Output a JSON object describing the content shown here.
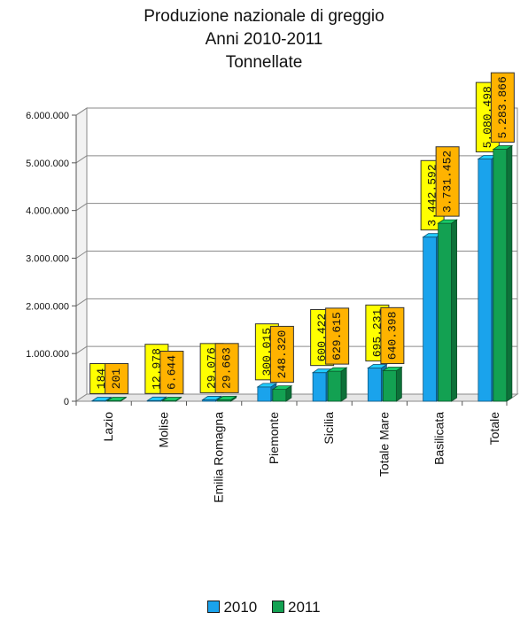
{
  "chart_data": {
    "type": "bar",
    "title": [
      "Produzione nazionale di greggio",
      "Anni 2010-2011",
      "Tonnellate"
    ],
    "xlabel": "",
    "ylabel": "",
    "ylim": [
      0,
      6000000
    ],
    "grid": true,
    "legend_position": "bottom",
    "y_ticks": [
      "0",
      "1.000.000",
      "2.000.000",
      "3.000.000",
      "4.000.000",
      "5.000.000",
      "6.000.000"
    ],
    "categories": [
      "Lazio",
      "Molise",
      "Emilia Romagna",
      "Piemonte",
      "Sicilia",
      "Totale Mare",
      "Basilicata",
      "Totale"
    ],
    "series": [
      {
        "name": "2010",
        "color": "#1aa3ec",
        "label_bg": "#ffff00",
        "values": [
          184,
          12978,
          29076,
          300015,
          600422,
          695231,
          3442592,
          5080498
        ],
        "labels": [
          "184",
          "12.978",
          "29.076",
          "300.015",
          "600.422",
          "695.231",
          "3.442.592",
          "5.080.498"
        ]
      },
      {
        "name": "2011",
        "color": "#13a152",
        "label_bg": "#ffb300",
        "values": [
          201,
          6644,
          29663,
          248320,
          629615,
          640398,
          3731452,
          5283866
        ],
        "labels": [
          "201",
          "6.644",
          "29.663",
          "248.320",
          "629.615",
          "640.398",
          "3.731.452",
          "5.283.866"
        ]
      }
    ]
  }
}
